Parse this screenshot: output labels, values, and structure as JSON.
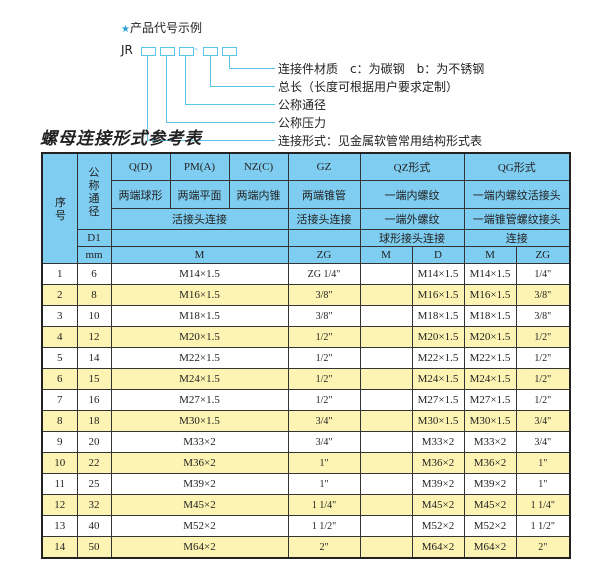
{
  "example": {
    "title": "产品代号示例",
    "code_prefix": "JR",
    "dash": "-",
    "descriptions": [
      "连接件材质　c：为碳钢　b：为不锈钢",
      "总长（长度可根据用户要求定制）",
      "公称通径",
      "公称压力",
      "连接形式：见金属软管常用结构形式表"
    ],
    "accent_color": "#5ac4e6"
  },
  "table": {
    "title": "螺母连接形式参考表",
    "header": {
      "seq": "序号",
      "nominal": "公称通径",
      "d1": "D1",
      "mm": "mm",
      "q": "Q(D)",
      "pm": "PM(A)",
      "nz": "NZ(C)",
      "gz": "GZ",
      "qz": "QZ形式",
      "qg": "QG形式",
      "q_desc": "两端球形",
      "pm_desc": "两端平面",
      "nz_desc": "两端内锥",
      "gz_desc": "两端锥管",
      "qz_desc1": "一端内螺纹",
      "qg_desc1": "一端内螺纹活接头",
      "union": "活接头连接",
      "gz_union": "活接头连接",
      "qz_desc2": "一端外螺纹",
      "qg_desc2": "一端锥管螺纹接头",
      "qz_desc3": "球形接头连接",
      "qg_desc3": "连接",
      "m": "M",
      "zg": "ZG",
      "qz_m": "M",
      "qz_d": "D",
      "qg_m": "M",
      "qg_zg": "ZG"
    },
    "header_color": "#7fcdf0",
    "alt_row_color": "#fdf4b3",
    "rows": [
      {
        "no": "1",
        "dn": "6",
        "m": "M14×1.5",
        "zg": "ZG 1/4\"",
        "qz_m": "",
        "qz_d": "M14×1.5",
        "qg_m": "M14×1.5",
        "qg_zg": "1/4\""
      },
      {
        "no": "2",
        "dn": "8",
        "m": "M16×1.5",
        "zg": "3/8\"",
        "qz_m": "",
        "qz_d": "M16×1.5",
        "qg_m": "M16×1.5",
        "qg_zg": "3/8\""
      },
      {
        "no": "3",
        "dn": "10",
        "m": "M18×1.5",
        "zg": "3/8\"",
        "qz_m": "",
        "qz_d": "M18×1.5",
        "qg_m": "M18×1.5",
        "qg_zg": "3/8\""
      },
      {
        "no": "4",
        "dn": "12",
        "m": "M20×1.5",
        "zg": "1/2\"",
        "qz_m": "",
        "qz_d": "M20×1.5",
        "qg_m": "M20×1.5",
        "qg_zg": "1/2\""
      },
      {
        "no": "5",
        "dn": "14",
        "m": "M22×1.5",
        "zg": "1/2\"",
        "qz_m": "",
        "qz_d": "M22×1.5",
        "qg_m": "M22×1.5",
        "qg_zg": "1/2\""
      },
      {
        "no": "6",
        "dn": "15",
        "m": "M24×1.5",
        "zg": "1/2\"",
        "qz_m": "",
        "qz_d": "M24×1.5",
        "qg_m": "M24×1.5",
        "qg_zg": "1/2\""
      },
      {
        "no": "7",
        "dn": "16",
        "m": "M27×1.5",
        "zg": "1/2\"",
        "qz_m": "",
        "qz_d": "M27×1.5",
        "qg_m": "M27×1.5",
        "qg_zg": "1/2\""
      },
      {
        "no": "8",
        "dn": "18",
        "m": "M30×1.5",
        "zg": "3/4\"",
        "qz_m": "",
        "qz_d": "M30×1.5",
        "qg_m": "M30×1.5",
        "qg_zg": "3/4\""
      },
      {
        "no": "9",
        "dn": "20",
        "m": "M33×2",
        "zg": "3/4\"",
        "qz_m": "",
        "qz_d": "M33×2",
        "qg_m": "M33×2",
        "qg_zg": "3/4\""
      },
      {
        "no": "10",
        "dn": "22",
        "m": "M36×2",
        "zg": "1\"",
        "qz_m": "",
        "qz_d": "M36×2",
        "qg_m": "M36×2",
        "qg_zg": "1\""
      },
      {
        "no": "11",
        "dn": "25",
        "m": "M39×2",
        "zg": "1\"",
        "qz_m": "",
        "qz_d": "M39×2",
        "qg_m": "M39×2",
        "qg_zg": "1\""
      },
      {
        "no": "12",
        "dn": "32",
        "m": "M45×2",
        "zg": "1 1/4\"",
        "qz_m": "",
        "qz_d": "M45×2",
        "qg_m": "M45×2",
        "qg_zg": "1 1/4\""
      },
      {
        "no": "13",
        "dn": "40",
        "m": "M52×2",
        "zg": "1 1/2\"",
        "qz_m": "",
        "qz_d": "M52×2",
        "qg_m": "M52×2",
        "qg_zg": "1 1/2\""
      },
      {
        "no": "14",
        "dn": "50",
        "m": "M64×2",
        "zg": "2\"",
        "qz_m": "",
        "qz_d": "M64×2",
        "qg_m": "M64×2",
        "qg_zg": "2\""
      }
    ]
  }
}
